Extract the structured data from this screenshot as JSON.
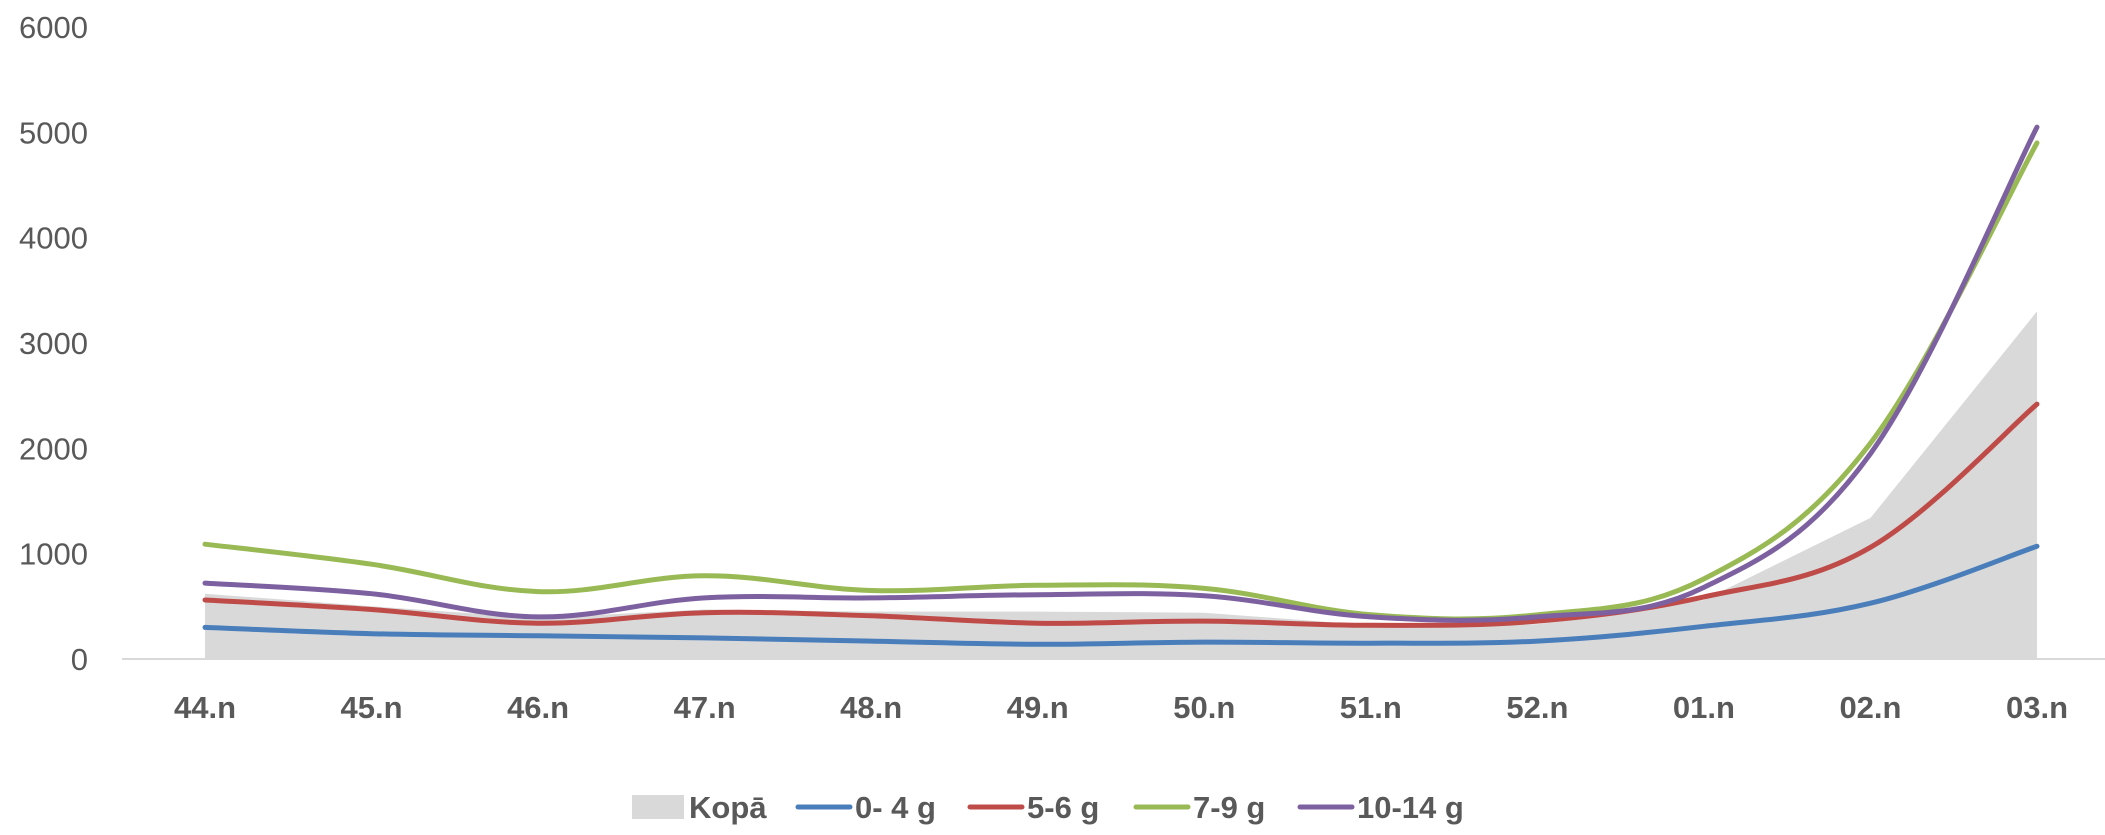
{
  "chart_data": {
    "type": "line",
    "title": "",
    "xlabel": "",
    "ylabel": "",
    "ylim": [
      0,
      6000
    ],
    "yticks": [
      "0",
      "1000",
      "2000",
      "3000",
      "4000",
      "5000",
      "6000"
    ],
    "categories": [
      "44.n",
      "45.n",
      "46.n",
      "47.n",
      "48.n",
      "49.n",
      "50.n",
      "51.n",
      "52.n",
      "01.n",
      "02.n",
      "03.n"
    ],
    "grid": false,
    "legend_position": "bottom",
    "series": [
      {
        "name": "Kopā",
        "kind": "area",
        "color": "#d9d9d9",
        "values": [
          620,
          500,
          390,
          470,
          450,
          450,
          440,
          320,
          330,
          560,
          1340,
          3300
        ]
      },
      {
        "name": "0- 4 g",
        "kind": "line",
        "color": "#4a7ebb",
        "values": [
          300,
          240,
          220,
          200,
          170,
          140,
          160,
          150,
          170,
          310,
          530,
          1070
        ]
      },
      {
        "name": "5-6 g",
        "kind": "line",
        "color": "#be4b48",
        "values": [
          560,
          470,
          340,
          440,
          410,
          340,
          360,
          320,
          360,
          590,
          1060,
          2420
        ]
      },
      {
        "name": "7-9 g",
        "kind": "line",
        "color": "#98b954",
        "values": [
          1090,
          900,
          640,
          790,
          650,
          700,
          670,
          420,
          420,
          760,
          2050,
          4900
        ]
      },
      {
        "name": "10-14 g",
        "kind": "line",
        "color": "#7d60a0",
        "values": [
          720,
          620,
          400,
          580,
          580,
          610,
          600,
          400,
          400,
          680,
          1950,
          5050
        ]
      }
    ]
  }
}
